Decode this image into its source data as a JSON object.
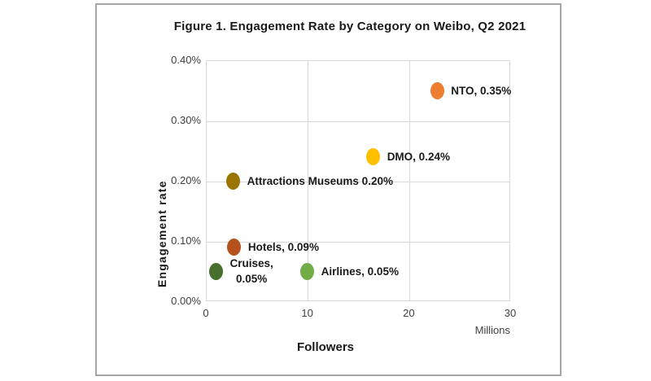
{
  "figure": {
    "title": "Figure 1. Engagement Rate by Category on Weibo, Q2 2021",
    "y_axis_title": "Engagement rate",
    "x_axis_title": "Followers",
    "x_axis_unit": "Millions"
  },
  "chart_data": {
    "type": "scatter",
    "title": "Figure 1. Engagement Rate by Category on Weibo, Q2 2021",
    "xlabel": "Followers",
    "x_unit": "Millions",
    "ylabel": "Engagement rate",
    "xlim": [
      0,
      30
    ],
    "ylim_pct": [
      0.0,
      0.4
    ],
    "grid": true,
    "x_ticks": [
      {
        "v": 0,
        "label": "0"
      },
      {
        "v": 10,
        "label": "10"
      },
      {
        "v": 20,
        "label": "20"
      },
      {
        "v": 30,
        "label": "30"
      }
    ],
    "y_ticks": [
      {
        "v": 0.0,
        "label": "0.00%"
      },
      {
        "v": 0.1,
        "label": "0.10%"
      },
      {
        "v": 0.2,
        "label": "0.20%"
      },
      {
        "v": 0.3,
        "label": "0.30%"
      },
      {
        "v": 0.4,
        "label": "0.40%"
      }
    ],
    "points": [
      {
        "name": "NTO",
        "followers_millions": 22.8,
        "engagement_rate_pct": 0.35,
        "label": "NTO, 0.35%",
        "color": "#ED7D31"
      },
      {
        "name": "DMO",
        "followers_millions": 16.5,
        "engagement_rate_pct": 0.24,
        "label": "DMO, 0.24%",
        "color": "#FFC000"
      },
      {
        "name": "Attractions Museums",
        "followers_millions": 2.7,
        "engagement_rate_pct": 0.2,
        "label": "Attractions Museums 0.20%",
        "color": "#9A7400"
      },
      {
        "name": "Hotels",
        "followers_millions": 2.8,
        "engagement_rate_pct": 0.09,
        "label": "Hotels, 0.09%",
        "color": "#B4511D"
      },
      {
        "name": "Cruises",
        "followers_millions": 1.0,
        "engagement_rate_pct": 0.05,
        "label": "Cruises, 0.05%",
        "label_lines": [
          "Cruises,",
          "0.05%"
        ],
        "color": "#47702F"
      },
      {
        "name": "Airlines",
        "followers_millions": 10.0,
        "engagement_rate_pct": 0.05,
        "label": "Airlines, 0.05%",
        "color": "#70AD47"
      }
    ]
  }
}
